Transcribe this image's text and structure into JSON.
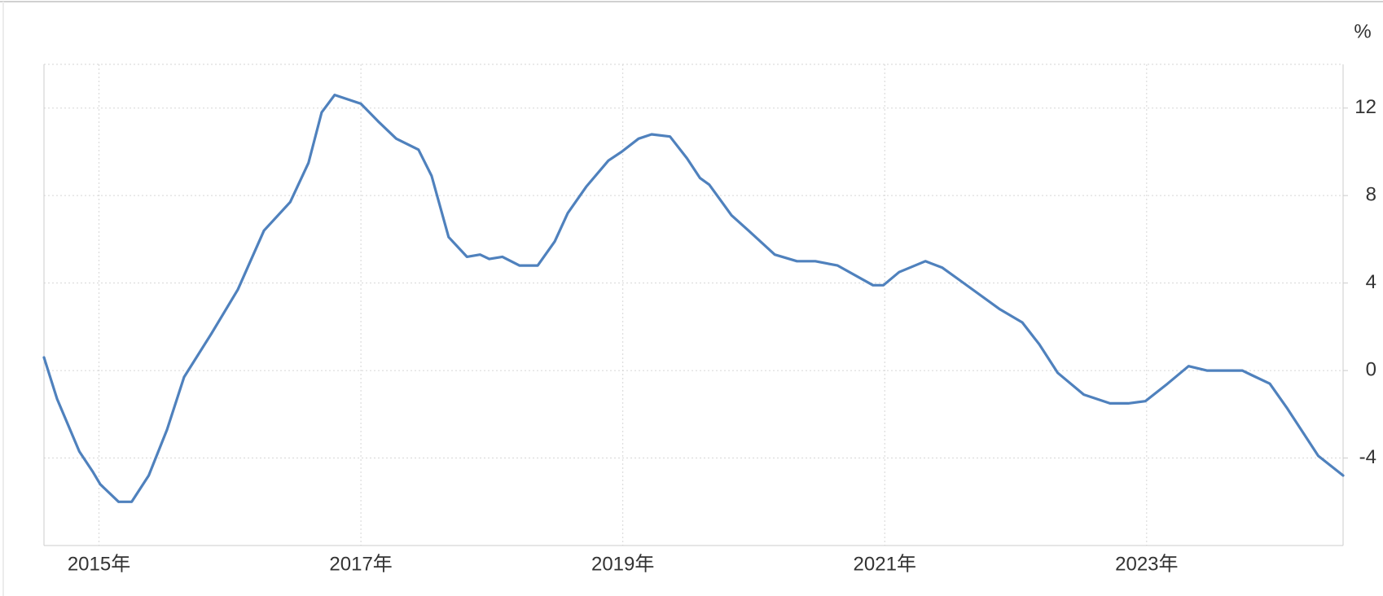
{
  "chart_data": {
    "type": "line",
    "unit": "%",
    "x": [
      2014.58,
      2014.68,
      2014.85,
      2014.95,
      2015.01,
      2015.15,
      2015.25,
      2015.38,
      2015.52,
      2015.65,
      2015.86,
      2016.06,
      2016.26,
      2016.46,
      2016.6,
      2016.7,
      2016.8,
      2016.9,
      2017.0,
      2017.13,
      2017.27,
      2017.44,
      2017.54,
      2017.67,
      2017.81,
      2017.91,
      2017.98,
      2018.08,
      2018.21,
      2018.35,
      2018.48,
      2018.58,
      2018.72,
      2018.89,
      2018.99,
      2019.12,
      2019.22,
      2019.36,
      2019.49,
      2019.59,
      2019.66,
      2019.83,
      2019.96,
      2020.16,
      2020.33,
      2020.47,
      2020.64,
      2020.91,
      2020.99,
      2021.11,
      2021.31,
      2021.44,
      2021.58,
      2021.88,
      2022.05,
      2022.18,
      2022.32,
      2022.52,
      2022.72,
      2022.86,
      2022.99,
      2023.16,
      2023.32,
      2023.46,
      2023.73,
      2023.8,
      2023.94,
      2024.07,
      2024.31,
      2024.5
    ],
    "series": [
      {
        "color": "#4f81bd",
        "values": [
          0.6,
          -1.3,
          -3.7,
          -4.6,
          -5.2,
          -6.0,
          -6.0,
          -4.8,
          -2.7,
          -0.3,
          1.7,
          3.7,
          6.4,
          7.7,
          9.5,
          11.8,
          12.6,
          12.4,
          12.2,
          11.4,
          10.6,
          10.1,
          8.9,
          6.1,
          5.2,
          5.3,
          5.1,
          5.2,
          4.8,
          4.8,
          5.9,
          7.2,
          8.4,
          9.6,
          10.0,
          10.6,
          10.8,
          10.7,
          9.7,
          8.8,
          8.5,
          7.1,
          6.4,
          5.3,
          5.0,
          5.0,
          4.8,
          3.9,
          3.9,
          4.5,
          5.0,
          4.7,
          4.1,
          2.8,
          2.2,
          1.2,
          -0.1,
          -1.1,
          -1.5,
          -1.5,
          -1.4,
          -0.6,
          0.2,
          0.0,
          0.0,
          -0.2,
          -0.6,
          -1.7,
          -3.9,
          -4.8
        ]
      }
    ],
    "xlim": [
      2014.58,
      2024.5
    ],
    "xticks": [
      {
        "value": 2015,
        "label": "2015年"
      },
      {
        "value": 2017,
        "label": "2017年"
      },
      {
        "value": 2019,
        "label": "2019年"
      },
      {
        "value": 2021,
        "label": "2021年"
      },
      {
        "value": 2023,
        "label": "2023年"
      }
    ],
    "ylim": [
      -8,
      14
    ],
    "yticks": [
      -4,
      0,
      4,
      8,
      12
    ],
    "grid": true
  }
}
